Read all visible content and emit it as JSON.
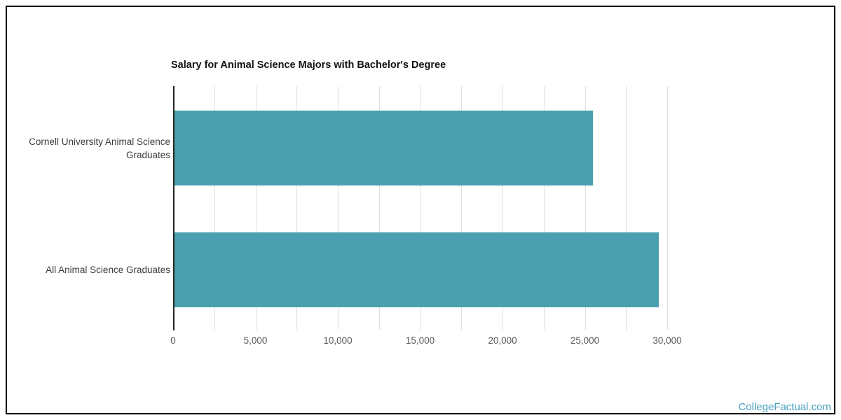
{
  "page": {
    "watermark": "CollegeFactual.com",
    "watermark_color": "#46A0BE"
  },
  "chart_data": {
    "type": "bar",
    "orientation": "horizontal",
    "title": "Salary for Animal Science Majors with Bachelor's Degree",
    "categories": [
      "Cornell University Animal Science Graduates",
      "All Animal Science Graduates"
    ],
    "values": [
      25400,
      29400
    ],
    "xlabel": "",
    "ylabel": "",
    "xlim": [
      0,
      30000
    ],
    "x_major_ticks": [
      0,
      5000,
      10000,
      15000,
      20000,
      25000,
      30000
    ],
    "x_tick_labels": [
      "0",
      "5,000",
      "10,000",
      "15,000",
      "20,000",
      "25,000",
      "30,000"
    ],
    "x_minor_step": 2500,
    "grid": true,
    "legend": "none",
    "bar_color": "#4AA0AE",
    "gridline_color": "#E0E0E0",
    "axis_color": "#262626"
  }
}
